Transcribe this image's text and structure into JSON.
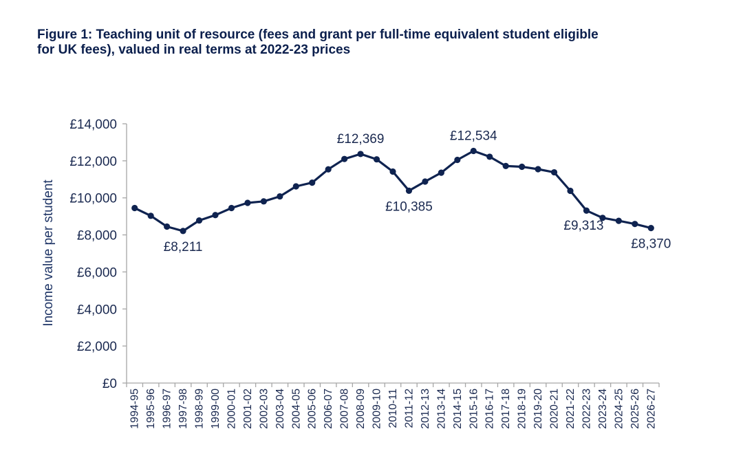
{
  "figure": {
    "title_line1": "Figure 1: Teaching unit of resource (fees and grant per full-time equivalent student eligible",
    "title_line2": "for UK fees), valued in real terms at 2022-23 prices"
  },
  "colors": {
    "line": "#0f2350",
    "axis": "#a6a6a6",
    "text": "#1a2950",
    "title": "#0b1f4d"
  },
  "chart_data": {
    "type": "line",
    "title": "Figure 1: Teaching unit of resource (fees and grant per full-time equivalent student eligible for UK fees), valued in real terms at 2022-23 prices",
    "xlabel": "",
    "ylabel": "Income value per student",
    "ylim": [
      0,
      14000
    ],
    "yticks": [
      0,
      2000,
      4000,
      6000,
      8000,
      10000,
      12000,
      14000
    ],
    "ytick_labels": [
      "£0",
      "£2,000",
      "£4,000",
      "£6,000",
      "£8,000",
      "£10,000",
      "£12,000",
      "£14,000"
    ],
    "grid": false,
    "categories": [
      "1994-95",
      "1995-96",
      "1996-97",
      "1997-98",
      "1998-99",
      "1999-00",
      "2000-01",
      "2001-02",
      "2002-03",
      "2003-04",
      "2004-05",
      "2005-06",
      "2006-07",
      "2007-08",
      "2008-09",
      "2009-10",
      "2010-11",
      "2011-12",
      "2012-13",
      "2013-14",
      "2014-15",
      "2015-16",
      "2016-17",
      "2017-18",
      "2018-19",
      "2019-20",
      "2020-21",
      "2021-22",
      "2022-23",
      "2023-24",
      "2024-25",
      "2025-26",
      "2026-27"
    ],
    "series": [
      {
        "name": "Teaching unit of resource",
        "values": [
          9450,
          9030,
          8450,
          8211,
          8780,
          9070,
          9450,
          9730,
          9810,
          10080,
          10620,
          10820,
          11540,
          12100,
          12369,
          12080,
          11420,
          10385,
          10880,
          11360,
          12050,
          12534,
          12220,
          11720,
          11680,
          11550,
          11380,
          10380,
          9313,
          8920,
          8760,
          8590,
          8370
        ]
      }
    ],
    "annotations": [
      {
        "index": 3,
        "text": "£8,211",
        "position": "below"
      },
      {
        "index": 14,
        "text": "£12,369",
        "position": "above"
      },
      {
        "index": 17,
        "text": "£10,385",
        "position": "below"
      },
      {
        "index": 21,
        "text": "£12,534",
        "position": "above"
      },
      {
        "index": 28,
        "text": "£9,313",
        "position": "below-left"
      },
      {
        "index": 32,
        "text": "£8,370",
        "position": "below"
      }
    ]
  }
}
